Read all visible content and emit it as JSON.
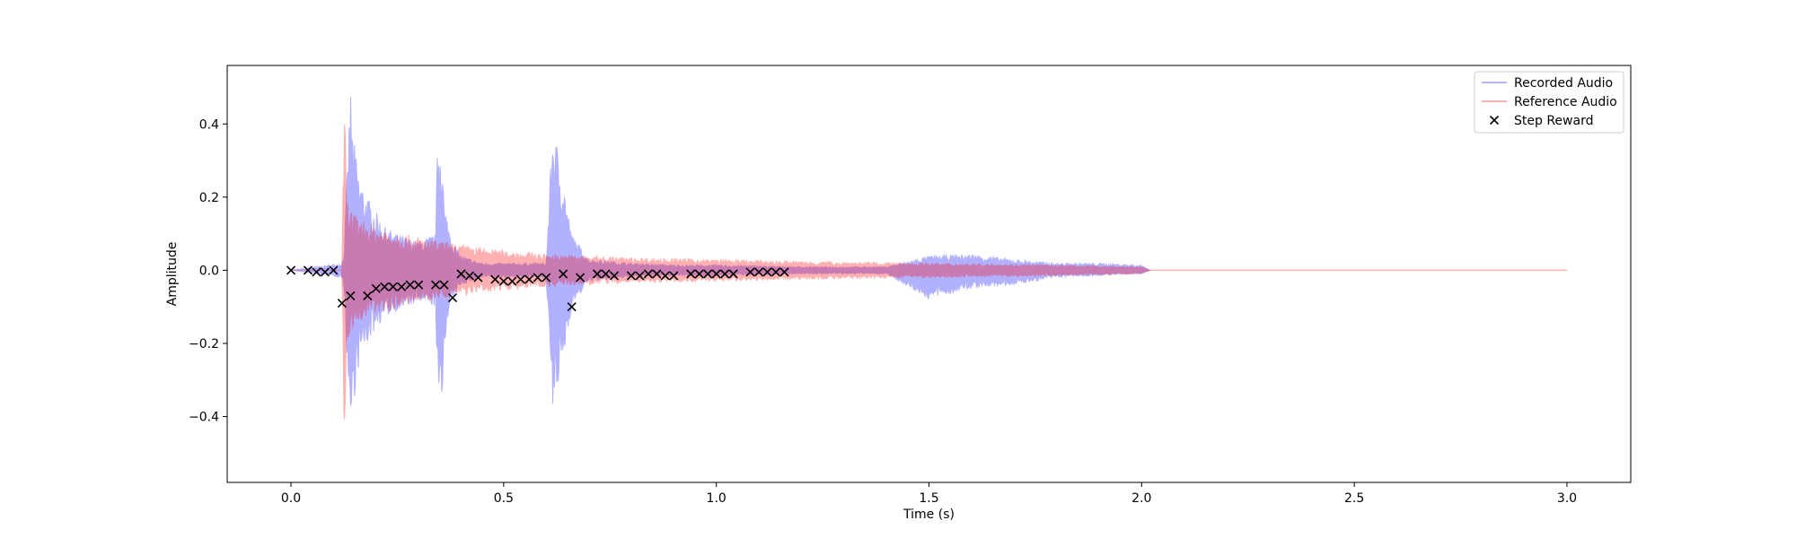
{
  "colors": {
    "recorded": "#0000ff",
    "reference": "#ff0000",
    "step_reward": "#000000"
  },
  "chart_data": {
    "type": "line",
    "title": "",
    "xlabel": "Time (s)",
    "ylabel": "Amplitude",
    "xlim": [
      -0.15,
      3.15
    ],
    "ylim": [
      -0.58,
      0.56
    ],
    "xticks": [
      0.0,
      0.5,
      1.0,
      1.5,
      2.0,
      2.5,
      3.0
    ],
    "xtick_labels": [
      "0.0",
      "0.5",
      "1.0",
      "1.5",
      "2.0",
      "2.5",
      "3.0"
    ],
    "yticks": [
      -0.4,
      -0.2,
      0.0,
      0.2,
      0.4
    ],
    "ytick_labels": [
      "−0.4",
      "−0.2",
      "0.0",
      "0.2",
      "0.4"
    ],
    "grid": false,
    "legend_position": "top-right",
    "legend": [
      "Recorded Audio",
      "Reference Audio",
      "Step Reward"
    ],
    "series": [
      {
        "name": "Recorded Audio",
        "kind": "waveform-envelope",
        "alpha": 0.3,
        "x": [
          0.0,
          0.12,
          0.125,
          0.14,
          0.145,
          0.16,
          0.18,
          0.2,
          0.22,
          0.25,
          0.3,
          0.34,
          0.345,
          0.355,
          0.36,
          0.38,
          0.4,
          0.45,
          0.5,
          0.6,
          0.615,
          0.62,
          0.64,
          0.66,
          0.7,
          0.8,
          0.9,
          1.0,
          1.2,
          1.4,
          1.5,
          1.6,
          1.7,
          1.8,
          1.9,
          2.0,
          2.02
        ],
        "upper": [
          0.0,
          0.02,
          0.05,
          0.51,
          0.38,
          0.26,
          0.2,
          0.16,
          0.12,
          0.1,
          0.08,
          0.1,
          0.38,
          0.36,
          0.18,
          0.08,
          0.04,
          0.02,
          0.02,
          0.02,
          0.4,
          0.38,
          0.25,
          0.1,
          0.03,
          0.02,
          0.015,
          0.015,
          0.01,
          0.01,
          0.04,
          0.045,
          0.03,
          0.02,
          0.02,
          0.015,
          0.0
        ],
        "lower": [
          0.0,
          -0.02,
          -0.05,
          -0.47,
          -0.38,
          -0.26,
          -0.2,
          -0.16,
          -0.13,
          -0.11,
          -0.09,
          -0.1,
          -0.38,
          -0.4,
          -0.2,
          -0.08,
          -0.04,
          -0.02,
          -0.02,
          -0.02,
          -0.4,
          -0.38,
          -0.25,
          -0.1,
          -0.03,
          -0.02,
          -0.015,
          -0.015,
          -0.01,
          -0.01,
          -0.08,
          -0.05,
          -0.04,
          -0.02,
          -0.015,
          -0.01,
          0.0
        ]
      },
      {
        "name": "Reference Audio",
        "kind": "waveform-envelope",
        "alpha": 0.3,
        "x": [
          0.0,
          0.12,
          0.125,
          0.128,
          0.13,
          0.15,
          0.2,
          0.3,
          0.4,
          0.5,
          0.6,
          0.7,
          0.8,
          1.0,
          1.2,
          1.5,
          1.8,
          2.0,
          2.02
        ],
        "upper": [
          0.0,
          0.0,
          0.47,
          0.4,
          0.2,
          0.15,
          0.12,
          0.09,
          0.07,
          0.055,
          0.045,
          0.04,
          0.035,
          0.03,
          0.025,
          0.02,
          0.015,
          0.01,
          0.0
        ],
        "lower": [
          0.0,
          0.0,
          -0.54,
          -0.4,
          -0.2,
          -0.15,
          -0.12,
          -0.09,
          -0.07,
          -0.055,
          -0.045,
          -0.04,
          -0.035,
          -0.03,
          -0.025,
          -0.02,
          -0.015,
          -0.01,
          0.0
        ],
        "tail": {
          "x_start": 2.02,
          "x_end": 3.0,
          "value": 0.0
        }
      },
      {
        "name": "Step Reward",
        "kind": "scatter",
        "marker": "x",
        "x": [
          0.0,
          0.04,
          0.06,
          0.08,
          0.1,
          0.12,
          0.14,
          0.18,
          0.2,
          0.22,
          0.24,
          0.26,
          0.28,
          0.3,
          0.34,
          0.36,
          0.38,
          0.4,
          0.42,
          0.44,
          0.48,
          0.5,
          0.52,
          0.54,
          0.56,
          0.58,
          0.6,
          0.64,
          0.66,
          0.68,
          0.72,
          0.74,
          0.76,
          0.8,
          0.82,
          0.84,
          0.86,
          0.88,
          0.9,
          0.94,
          0.96,
          0.98,
          1.0,
          1.02,
          1.04,
          1.08,
          1.1,
          1.12,
          1.14,
          1.16
        ],
        "y": [
          0.0,
          0.0,
          -0.005,
          -0.005,
          0.0,
          -0.09,
          -0.07,
          -0.07,
          -0.05,
          -0.045,
          -0.045,
          -0.045,
          -0.04,
          -0.04,
          -0.04,
          -0.04,
          -0.075,
          -0.01,
          -0.015,
          -0.02,
          -0.025,
          -0.03,
          -0.03,
          -0.025,
          -0.025,
          -0.02,
          -0.02,
          -0.01,
          -0.1,
          -0.02,
          -0.01,
          -0.01,
          -0.015,
          -0.015,
          -0.015,
          -0.01,
          -0.01,
          -0.015,
          -0.015,
          -0.01,
          -0.01,
          -0.01,
          -0.01,
          -0.01,
          -0.01,
          -0.005,
          -0.005,
          -0.005,
          -0.005,
          -0.005
        ]
      }
    ]
  }
}
